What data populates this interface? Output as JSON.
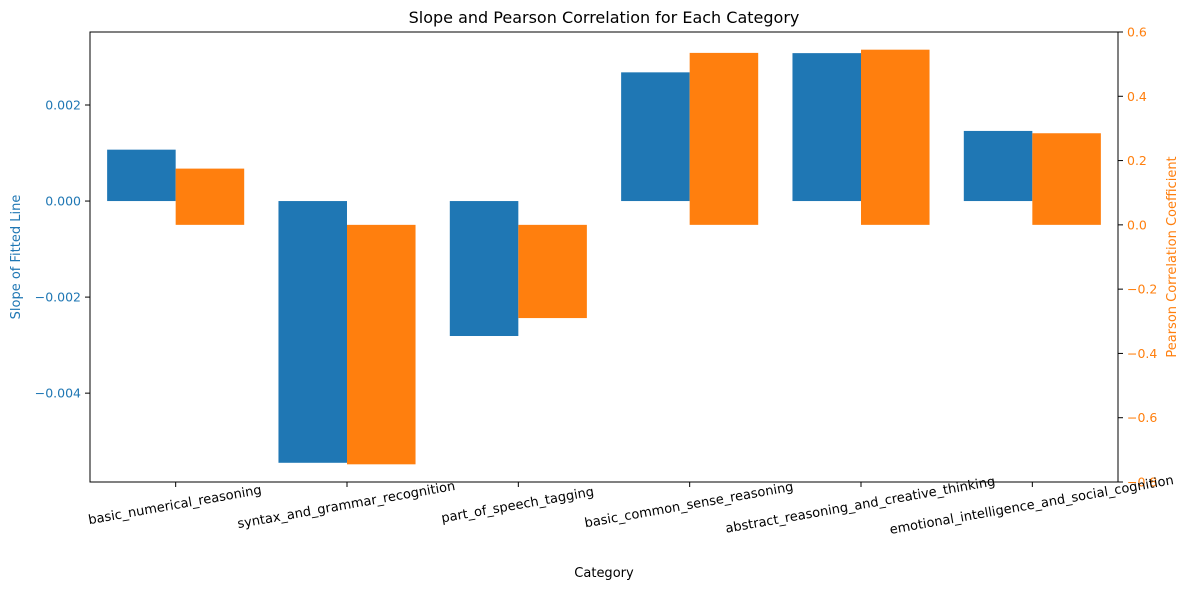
{
  "chart_data": {
    "type": "bar",
    "title": "Slope and Pearson Correlation for Each Category",
    "xlabel": "Category",
    "categories": [
      "basic_numerical_reasoning",
      "syntax_and_grammar_recognition",
      "part_of_speech_tagging",
      "basic_common_sense_reasoning",
      "abstract_reasoning_and_creative_thinking",
      "emotional_intelligence_and_social_cognition"
    ],
    "axes": {
      "left": {
        "label": "Slope of Fitted Line",
        "ylim": [
          -0.00585,
          0.00352
        ],
        "ticks": [
          0.002,
          0.0,
          -0.002,
          -0.004
        ],
        "tick_labels": [
          "0.002",
          "0.000",
          "−0.002",
          "−0.004"
        ],
        "color": "#1f77b4"
      },
      "right": {
        "label": "Pearson Correlation Coefficient",
        "ylim": [
          -0.8,
          0.6
        ],
        "ticks": [
          0.6,
          0.4,
          0.2,
          0.0,
          -0.2,
          -0.4,
          -0.6,
          -0.8
        ],
        "tick_labels": [
          "0.6",
          "0.4",
          "0.2",
          "0.0",
          "−0.2",
          "−0.4",
          "−0.6",
          "−0.8"
        ],
        "color": "#ff7f0e"
      }
    },
    "series": [
      {
        "axis": "left",
        "color": "#1f77b4",
        "values": [
          0.00107,
          -0.00545,
          -0.00281,
          0.00268,
          0.00308,
          0.00146
        ]
      },
      {
        "axis": "right",
        "color": "#ff7f0e",
        "values": [
          0.175,
          -0.745,
          -0.29,
          0.535,
          0.545,
          0.285
        ]
      }
    ],
    "grid": false,
    "legend": "none"
  }
}
